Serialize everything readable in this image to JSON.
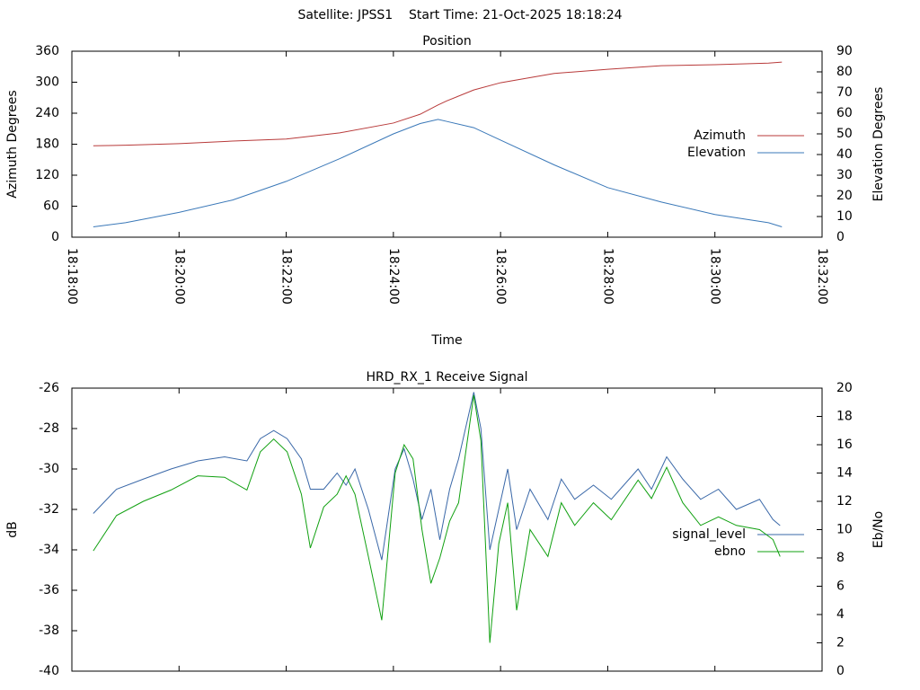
{
  "title": "Satellite: JPSS1    Start Time: 21-Oct-2025 18:18:24",
  "chart_data": [
    {
      "type": "line",
      "title": "Position",
      "xlabel": "Time",
      "ylabel": "Azimuth Degrees",
      "y2label": "Elevation Degrees",
      "legend": "right",
      "show_xtick_labels": true,
      "x": [
        "18:18:24",
        "18:19:00",
        "18:20:00",
        "18:21:00",
        "18:22:00",
        "18:23:00",
        "18:24:00",
        "18:24:30",
        "18:24:50",
        "18:25:00",
        "18:25:30",
        "18:26:00",
        "18:27:00",
        "18:28:00",
        "18:29:00",
        "18:30:00",
        "18:31:00",
        "18:31:15"
      ],
      "series": [
        {
          "name": "Azimuth",
          "color": "#b83a3a",
          "values": [
            177,
            178,
            181,
            186,
            190,
            202,
            221,
            238,
            256,
            264,
            285,
            299,
            317,
            325,
            332,
            334,
            337,
            339
          ]
        },
        {
          "name": "Elevation",
          "color": "#3a78b8",
          "axis": "y2",
          "values": [
            5,
            7,
            12,
            18,
            27,
            38,
            50,
            55,
            57,
            56,
            53,
            47,
            35,
            24,
            17,
            11,
            7,
            5
          ]
        }
      ],
      "xlim": [
        "18:18:00",
        "18:32:00"
      ],
      "xticks": [
        "18:18:00",
        "18:20:00",
        "18:22:00",
        "18:24:00",
        "18:26:00",
        "18:28:00",
        "18:30:00",
        "18:32:00"
      ],
      "ylim": [
        0,
        360
      ],
      "yticks": [
        0,
        60,
        120,
        180,
        240,
        300,
        360
      ],
      "y2lim": [
        0,
        90
      ],
      "y2ticks": [
        0,
        10,
        20,
        30,
        40,
        50,
        60,
        70,
        80,
        90
      ]
    },
    {
      "type": "line",
      "title": "HRD_RX_1 Receive Signal",
      "ylabel": "dB",
      "y2label": "Eb/No",
      "legend": "right",
      "show_xtick_labels": false,
      "x": [
        "18:18:24",
        "18:18:50",
        "18:19:20",
        "18:19:51",
        "18:20:21",
        "18:20:51",
        "18:21:16",
        "18:21:31",
        "18:21:46",
        "18:22:01",
        "18:22:17",
        "18:22:27",
        "18:22:42",
        "18:22:57",
        "18:23:07",
        "18:23:17",
        "18:23:32",
        "18:23:47",
        "18:24:02",
        "18:24:12",
        "18:24:22",
        "18:24:32",
        "18:24:42",
        "18:24:52",
        "18:25:03",
        "18:25:13",
        "18:25:30",
        "18:25:38",
        "18:25:48",
        "18:25:58",
        "18:26:08",
        "18:26:18",
        "18:26:33",
        "18:26:53",
        "18:27:08",
        "18:27:23",
        "18:27:44",
        "18:28:04",
        "18:28:34",
        "18:28:49",
        "18:29:06",
        "18:29:24",
        "18:29:44",
        "18:30:04",
        "18:30:24",
        "18:30:50",
        "18:31:05",
        "18:31:13"
      ],
      "series": [
        {
          "name": "signal_level",
          "color": "#3a68a8",
          "values": [
            -32.2,
            -31,
            -30.5,
            -30,
            -29.6,
            -29.4,
            -29.6,
            -28.5,
            -28.1,
            -28.5,
            -29.5,
            -31,
            -31,
            -30.2,
            -30.8,
            -30,
            -32,
            -34.5,
            -30,
            -29,
            -30.5,
            -32.5,
            -31,
            -33.5,
            -31,
            -29.5,
            -26.2,
            -28,
            -34,
            -32,
            -30,
            -33,
            -31,
            -32.5,
            -30.5,
            -31.5,
            -30.8,
            -31.5,
            -30,
            -31,
            -29.4,
            -30.5,
            -31.5,
            -31,
            -32,
            -31.5,
            -32.5,
            -32.8
          ]
        },
        {
          "name": "ebno",
          "color": "#10a010",
          "axis": "y2",
          "values": [
            8.5,
            11,
            12,
            12.8,
            13.8,
            13.7,
            12.8,
            15.5,
            16.4,
            15.5,
            12.5,
            8.7,
            11.6,
            12.5,
            13.8,
            12.5,
            8.1,
            3.6,
            14,
            16,
            15,
            10,
            6.2,
            8,
            10.6,
            11.9,
            19.5,
            16.3,
            2,
            9,
            11.9,
            4.3,
            10,
            8.1,
            11.9,
            10.3,
            11.9,
            10.7,
            13.5,
            12.2,
            14.4,
            11.9,
            10.3,
            10.9,
            10.3,
            10,
            9.3,
            8.1
          ]
        }
      ],
      "xlim": [
        "18:18:00",
        "18:32:00"
      ],
      "xticks": [
        "18:18:00",
        "18:20:00",
        "18:22:00",
        "18:24:00",
        "18:26:00",
        "18:28:00",
        "18:30:00",
        "18:32:00"
      ],
      "ylim": [
        -40,
        -26
      ],
      "yticks": [
        -40,
        -38,
        -36,
        -34,
        -32,
        -30,
        -28,
        -26
      ],
      "y2lim": [
        0,
        20
      ],
      "y2ticks": [
        0,
        2,
        4,
        6,
        8,
        10,
        12,
        14,
        16,
        18,
        20
      ]
    }
  ]
}
